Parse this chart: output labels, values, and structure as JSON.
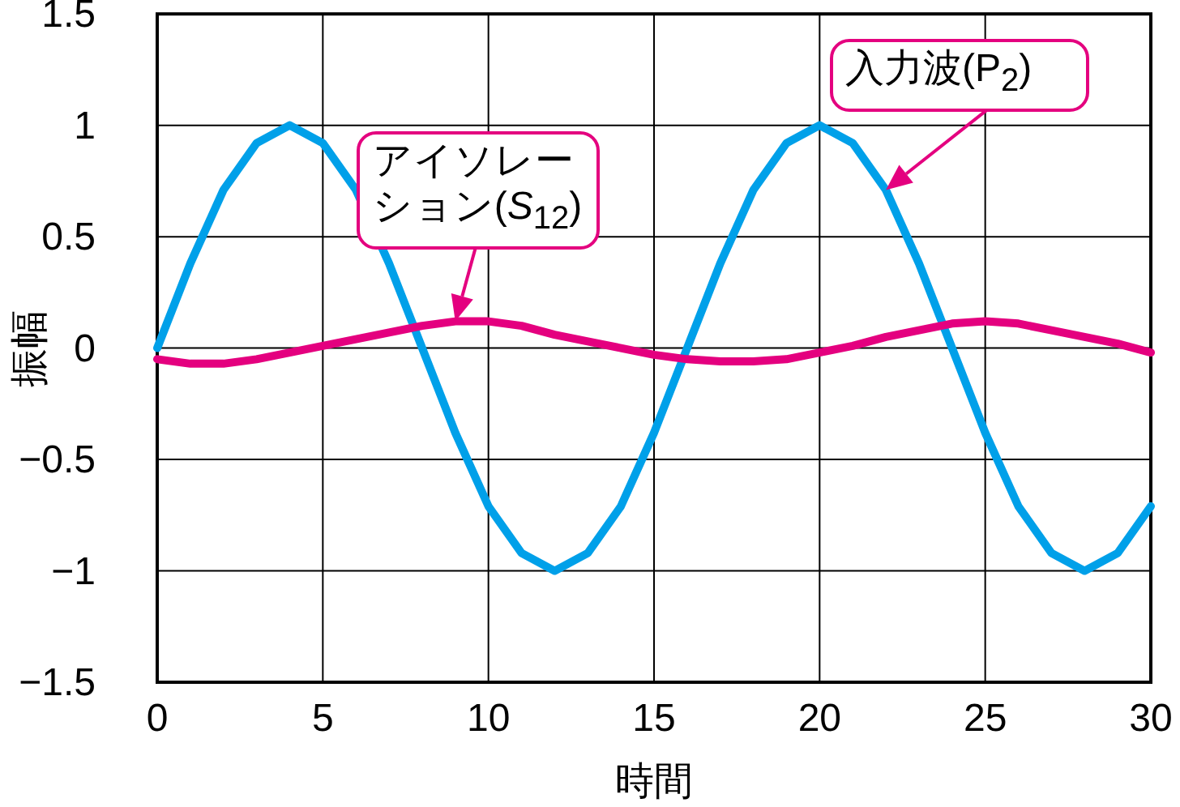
{
  "chart_data": {
    "type": "line",
    "xlabel": "時間",
    "ylabel": "振幅",
    "x": [
      0,
      1,
      2,
      3,
      4,
      5,
      6,
      7,
      8,
      9,
      10,
      11,
      12,
      13,
      14,
      15,
      16,
      17,
      18,
      19,
      20,
      21,
      22,
      23,
      24,
      25,
      26,
      27,
      28,
      29,
      30
    ],
    "series": [
      {
        "color": "#00a0e9",
        "values": [
          0,
          0.38,
          0.71,
          0.92,
          1,
          0.92,
          0.71,
          0.38,
          0,
          -0.38,
          -0.71,
          -0.92,
          -1,
          -0.92,
          -0.71,
          -0.38,
          0,
          0.38,
          0.71,
          0.92,
          1,
          0.92,
          0.71,
          0.38,
          0,
          -0.38,
          -0.71,
          -0.92,
          -1,
          -0.92,
          -0.71
        ]
      },
      {
        "color": "#e4007f",
        "values": [
          -0.05,
          -0.07,
          -0.07,
          -0.05,
          -0.02,
          0.01,
          0.04,
          0.07,
          0.1,
          0.12,
          0.12,
          0.1,
          0.06,
          0.03,
          0,
          -0.03,
          -0.05,
          -0.06,
          -0.06,
          -0.05,
          -0.02,
          0.01,
          0.05,
          0.08,
          0.11,
          0.12,
          0.11,
          0.08,
          0.05,
          0.02,
          -0.02
        ]
      }
    ],
    "annotations": [
      {
        "text": "アイソレーション(*S*$_{12}$)",
        "x": 9,
        "y": 0.12
      },
      {
        "text": "入力波(P$_{2}$)",
        "x": 22,
        "y": 0.71
      }
    ],
    "xlim": [
      0,
      30
    ],
    "xticks": [
      0,
      5,
      10,
      15,
      20,
      25,
      30
    ],
    "ylim": [
      -1.5,
      1.5
    ],
    "yticks": [
      {
        "value": -1.5,
        "label": "−1.5"
      },
      {
        "value": -1,
        "label": "−1"
      },
      {
        "value": -0.5,
        "label": "−0.5"
      },
      0,
      0.5,
      1,
      1.5
    ],
    "grid": true,
    "marker": "none",
    "line_style": "solid"
  }
}
